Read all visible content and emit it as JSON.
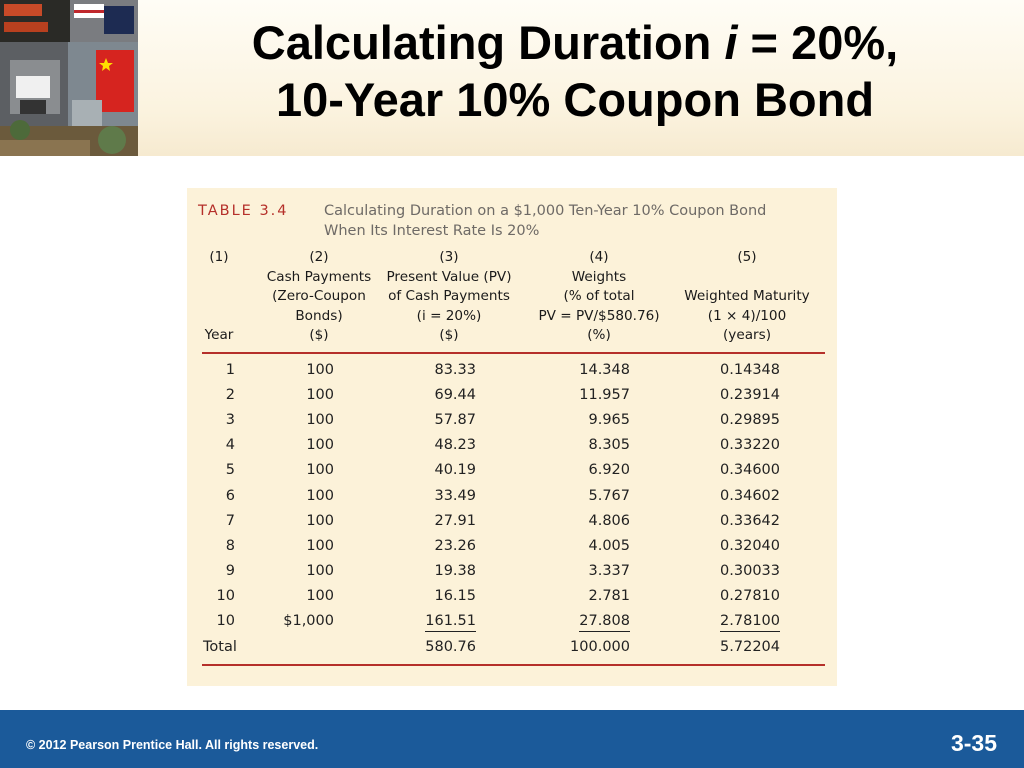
{
  "title": {
    "line1_prefix": "Calculating Duration ",
    "line1_var": "i",
    "line1_suffix": " = 20%,",
    "line2": "10-Year 10% Coupon Bond"
  },
  "table": {
    "label": "TABLE 3.4",
    "caption_line1": "Calculating Duration on a $1,000 Ten-Year 10% Coupon Bond",
    "caption_line2": "When Its Interest Rate Is 20%",
    "columns": [
      {
        "num": "(1)",
        "lines": [
          "",
          "",
          "",
          "Year"
        ]
      },
      {
        "num": "(2)",
        "lines": [
          "Cash Payments",
          "(Zero-Coupon",
          "Bonds)",
          "($)"
        ]
      },
      {
        "num": "(3)",
        "lines": [
          "Present Value (PV)",
          "of Cash Payments",
          "(i = 20%)",
          "($)"
        ]
      },
      {
        "num": "(4)",
        "lines": [
          "Weights",
          "(% of total",
          "PV = PV/$580.76)",
          "(%)"
        ]
      },
      {
        "num": "(5)",
        "lines": [
          "",
          "Weighted Maturity",
          "(1 × 4)/100",
          "(years)"
        ]
      }
    ],
    "rows": [
      [
        "1",
        "100",
        "83.33",
        "14.348",
        "0.14348"
      ],
      [
        "2",
        "100",
        "69.44",
        "11.957",
        "0.23914"
      ],
      [
        "3",
        "100",
        "57.87",
        "9.965",
        "0.29895"
      ],
      [
        "4",
        "100",
        "48.23",
        "8.305",
        "0.33220"
      ],
      [
        "5",
        "100",
        "40.19",
        "6.920",
        "0.34600"
      ],
      [
        "6",
        "100",
        "33.49",
        "5.767",
        "0.34602"
      ],
      [
        "7",
        "100",
        "27.91",
        "4.806",
        "0.33642"
      ],
      [
        "8",
        "100",
        "23.26",
        "4.005",
        "0.32040"
      ],
      [
        "9",
        "100",
        "19.38",
        "3.337",
        "0.30033"
      ],
      [
        "10",
        "100",
        "16.15",
        "2.781",
        "0.27810"
      ],
      [
        "10",
        "$1,000",
        "161.51",
        "27.808",
        "2.78100"
      ]
    ],
    "total": [
      "Total",
      "",
      "580.76",
      "100.000",
      "5.72204"
    ]
  },
  "footer": {
    "copyright": "© 2012 Pearson Prentice Hall. All rights reserved.",
    "slide_number": "3-35"
  },
  "colors": {
    "footer_bar": "#1b5a9a",
    "table_background": "#fcf2d9",
    "table_rule": "#b5302a"
  }
}
